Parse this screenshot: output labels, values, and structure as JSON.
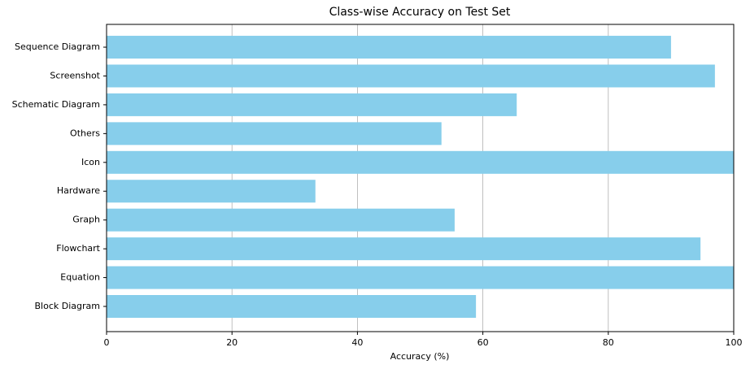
{
  "chart_data": {
    "type": "barh",
    "title": "Class-wise Accuracy on Test Set",
    "x_label": "Accuracy (%)",
    "categories": [
      "Block Diagram",
      "Equation",
      "Flowchart",
      "Graph",
      "Hardware",
      "Icon",
      "Others",
      "Schematic Diagram",
      "Screenshot",
      "Sequence Diagram"
    ],
    "values": [
      58.9,
      100,
      94.7,
      55.5,
      33.3,
      100,
      53.4,
      65.4,
      97.0,
      90.0
    ],
    "color": "#87ceeb",
    "xlim": [
      0,
      100
    ],
    "xticks": [
      0,
      20,
      40,
      60,
      80,
      100
    ],
    "grid": true
  }
}
